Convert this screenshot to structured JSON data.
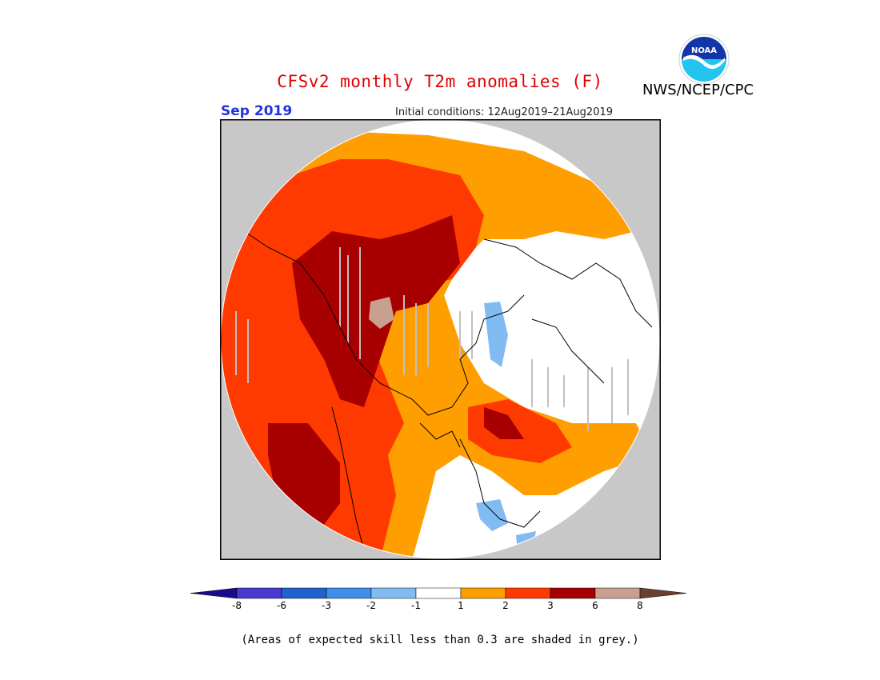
{
  "title": "CFSv2 monthly T2m anomalies (F)",
  "org": "NWS/NCEP/CPC",
  "logo_text": "NOAA",
  "month": "Sep 2019",
  "initial_conditions": "Initial conditions: 12Aug2019–21Aug2019",
  "footnote": "(Areas of expected skill less than 0.3 are shaded in grey.)",
  "colors": {
    "title": "#dd0000",
    "month": "#2233dd",
    "background_outside_map": "#c8c8c8",
    "no_skill_grey": "#c0c0c0"
  },
  "legend": {
    "levels": [
      "-8",
      "-6",
      "-3",
      "-2",
      "-1",
      "1",
      "2",
      "3",
      "6",
      "8"
    ],
    "bins": [
      {
        "range": "< -8",
        "color": "#1a0a8c"
      },
      {
        "range": "-8 to -6",
        "color": "#4a3ad0"
      },
      {
        "range": "-6 to -3",
        "color": "#1f62cc"
      },
      {
        "range": "-3 to -2",
        "color": "#3f8fe8"
      },
      {
        "range": "-2 to -1",
        "color": "#82bbf2"
      },
      {
        "range": "-1 to 1",
        "color": "#ffffff"
      },
      {
        "range": "1 to 2",
        "color": "#ff9e00"
      },
      {
        "range": "2 to 3",
        "color": "#ff3a00"
      },
      {
        "range": "3 to 6",
        "color": "#a80000"
      },
      {
        "range": "6 to 8",
        "color": "#c8a090"
      },
      {
        "range": "> 8",
        "color": "#6a4030"
      }
    ]
  }
}
